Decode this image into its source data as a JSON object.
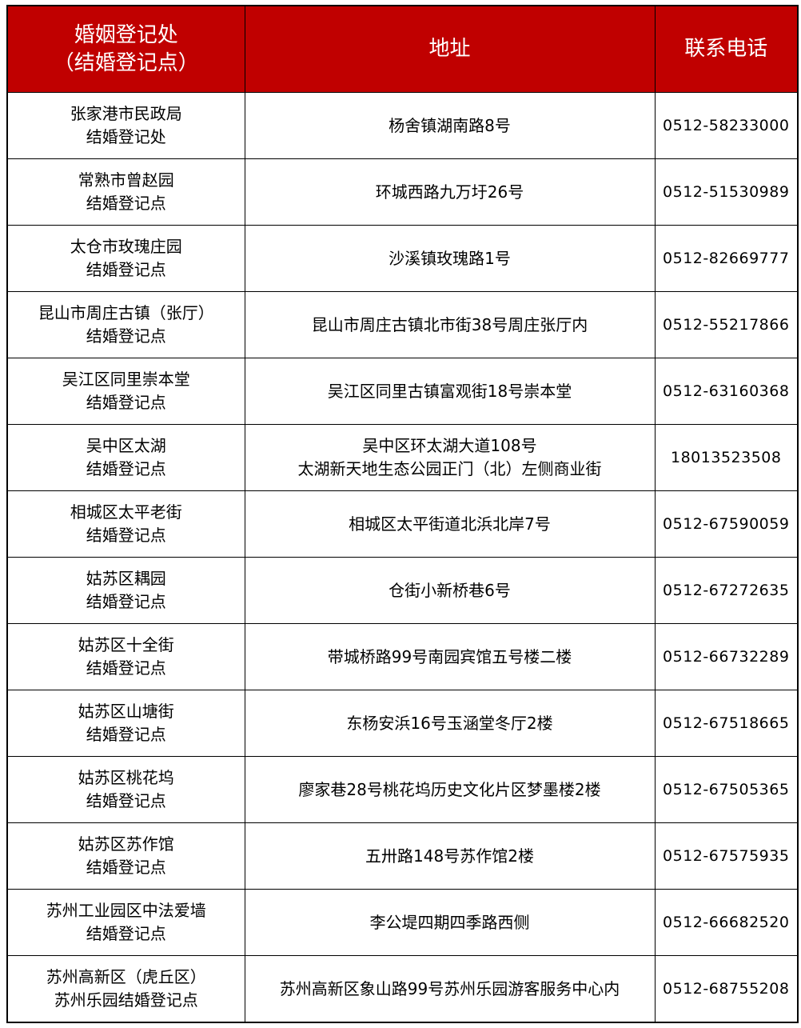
{
  "header": {
    "office_line1": "婚姻登记处",
    "office_line2": "（结婚登记点）",
    "address": "地址",
    "phone": "联系电话"
  },
  "header_color": "#c00000",
  "rows": [
    {
      "name1": "张家港市民政局",
      "name2": "结婚登记处",
      "addr1": "杨舍镇湖南路8号",
      "addr2": "",
      "phone": "0512-58233000"
    },
    {
      "name1": "常熟市曾赵园",
      "name2": "结婚登记点",
      "addr1": "环城西路九万圩26号",
      "addr2": "",
      "phone": "0512-51530989"
    },
    {
      "name1": "太仓市玫瑰庄园",
      "name2": "结婚登记点",
      "addr1": "沙溪镇玫瑰路1号",
      "addr2": "",
      "phone": "0512-82669777"
    },
    {
      "name1": "昆山市周庄古镇（张厅）",
      "name2": "结婚登记点",
      "addr1": "昆山市周庄古镇北市街38号周庄张厅内",
      "addr2": "",
      "phone": "0512-55217866"
    },
    {
      "name1": "吴江区同里崇本堂",
      "name2": "结婚登记点",
      "addr1": "吴江区同里古镇富观街18号崇本堂",
      "addr2": "",
      "phone": "0512-63160368"
    },
    {
      "name1": "吴中区太湖",
      "name2": "结婚登记点",
      "addr1": "吴中区环太湖大道108号",
      "addr2": "太湖新天地生态公园正门（北）左侧商业街",
      "phone": "18013523508"
    },
    {
      "name1": "相城区太平老街",
      "name2": "结婚登记点",
      "addr1": "相城区太平街道北浜北岸7号",
      "addr2": "",
      "phone": "0512-67590059"
    },
    {
      "name1": "姑苏区耦园",
      "name2": "结婚登记点",
      "addr1": "仓街小新桥巷6号",
      "addr2": "",
      "phone": "0512-67272635"
    },
    {
      "name1": "姑苏区十全街",
      "name2": "结婚登记点",
      "addr1": "带城桥路99号南园宾馆五号楼二楼",
      "addr2": "",
      "phone": "0512-66732289"
    },
    {
      "name1": "姑苏区山塘街",
      "name2": "结婚登记点",
      "addr1": "东杨安浜16号玉涵堂冬厅2楼",
      "addr2": "",
      "phone": "0512-67518665"
    },
    {
      "name1": "姑苏区桃花坞",
      "name2": "结婚登记点",
      "addr1": "廖家巷28号桃花坞历史文化片区梦墨楼2楼",
      "addr2": "",
      "phone": "0512-67505365"
    },
    {
      "name1": "姑苏区苏作馆",
      "name2": "结婚登记点",
      "addr1": "五卅路148号苏作馆2楼",
      "addr2": "",
      "phone": "0512-67575935"
    },
    {
      "name1": "苏州工业园区中法爱墙",
      "name2": "结婚登记点",
      "addr1": "李公堤四期四季路西侧",
      "addr2": "",
      "phone": "0512-66682520"
    },
    {
      "name1": "苏州高新区（虎丘区）",
      "name2": "苏州乐园结婚登记点",
      "addr1": "苏州高新区象山路99号苏州乐园游客服务中心内",
      "addr2": "",
      "phone": "0512-68755208"
    }
  ]
}
